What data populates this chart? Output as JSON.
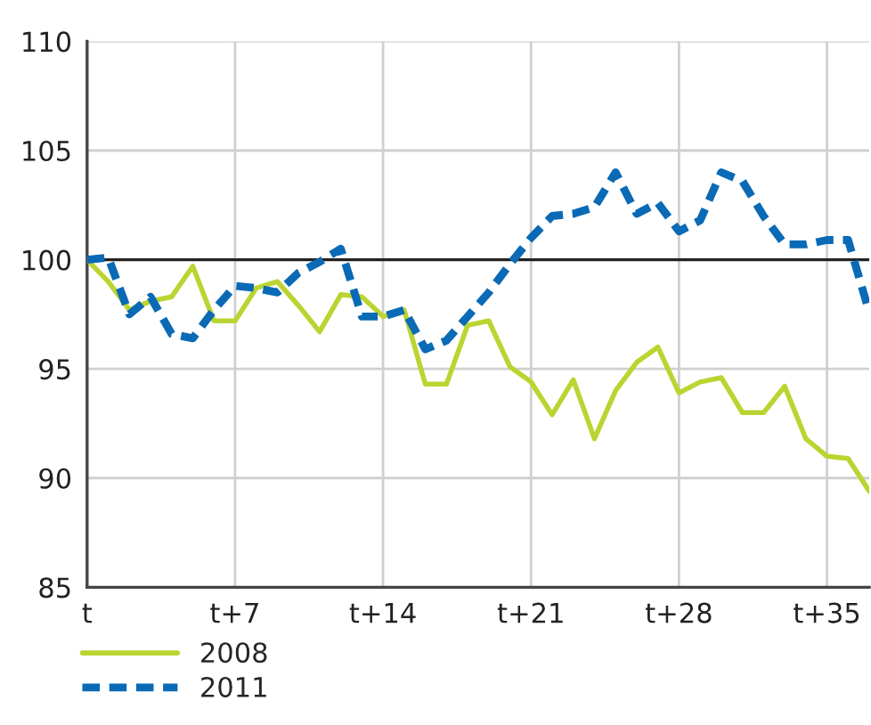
{
  "chart_data": {
    "type": "line",
    "categories": [
      "t",
      null,
      null,
      null,
      null,
      null,
      null,
      "t+7",
      null,
      null,
      null,
      null,
      null,
      null,
      "t+14",
      null,
      null,
      null,
      null,
      null,
      null,
      "t+21",
      null,
      null,
      null,
      null,
      null,
      null,
      "t+28",
      null,
      null,
      null,
      null,
      null,
      null,
      "t+35",
      null,
      null
    ],
    "series": [
      {
        "name": "2008",
        "color": "#bcd431",
        "line_style": "solid",
        "values": [
          100.0,
          99.0,
          97.7,
          98.1,
          98.3,
          99.7,
          97.2,
          97.2,
          98.7,
          99.0,
          97.9,
          96.7,
          98.4,
          98.3,
          97.4,
          97.7,
          94.3,
          94.3,
          97.0,
          97.2,
          95.1,
          94.4,
          92.9,
          94.5,
          91.8,
          94.0,
          95.3,
          96.0,
          93.9,
          94.4,
          94.6,
          93.0,
          93.0,
          94.2,
          91.8,
          91.0,
          90.9,
          89.4
        ]
      },
      {
        "name": "2011",
        "color": "#0a6ab5",
        "line_style": "dashed",
        "values": [
          100.0,
          100.1,
          97.5,
          98.3,
          96.6,
          96.4,
          97.7,
          98.8,
          98.7,
          98.5,
          99.4,
          99.9,
          100.5,
          97.4,
          97.4,
          97.7,
          95.9,
          96.3,
          97.4,
          98.5,
          99.8,
          101.0,
          102.0,
          102.1,
          102.4,
          104.0,
          102.1,
          102.6,
          101.3,
          101.8,
          104.0,
          103.6,
          102.0,
          100.7,
          100.7,
          100.9,
          100.9,
          97.6
        ]
      }
    ],
    "ylim": [
      85,
      110
    ],
    "yticks": [
      85,
      90,
      95,
      100,
      105,
      110
    ],
    "ref_lines": [
      {
        "axis": "y",
        "value": 100,
        "color": "#222222"
      }
    ],
    "grid": true,
    "legend": "bottom left",
    "marker": "none"
  }
}
